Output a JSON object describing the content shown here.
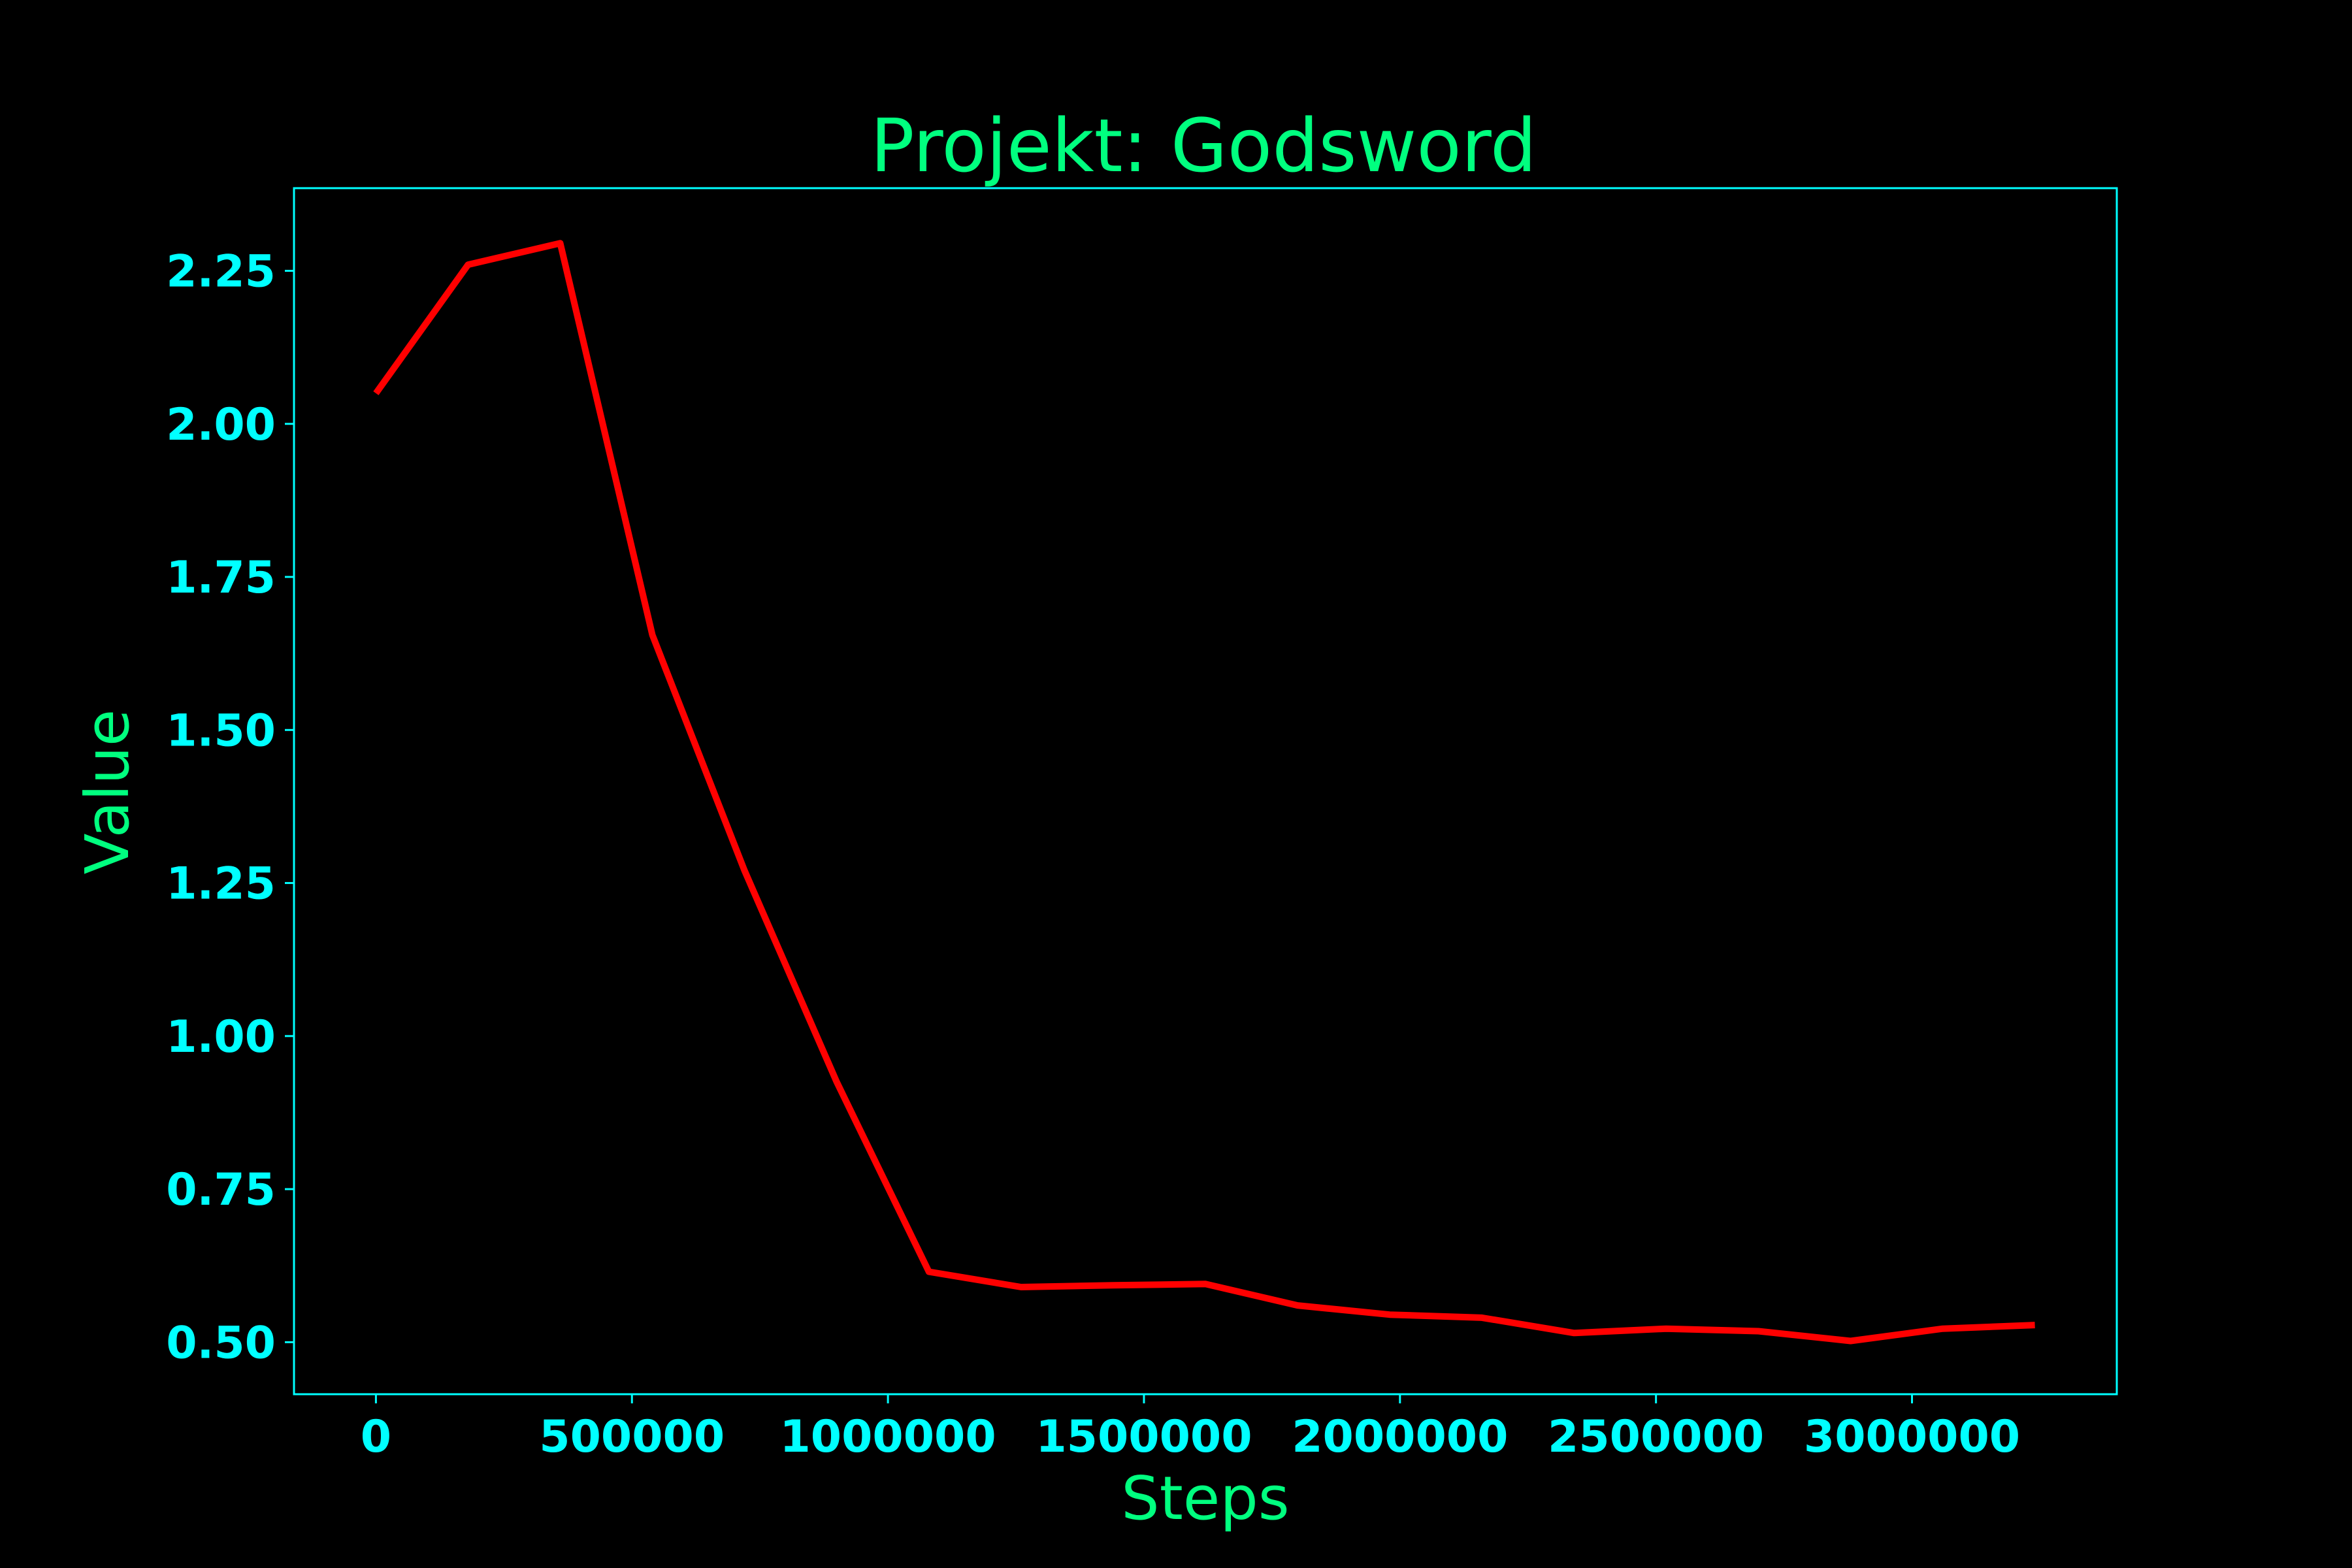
{
  "chart_data": {
    "type": "line",
    "title": "Projekt: Godsword",
    "xlabel": "Steps",
    "ylabel": "Value",
    "xlim": [
      -160000,
      3400000
    ],
    "ylim": [
      0.415,
      2.385
    ],
    "xticks": [
      0,
      500000,
      1000000,
      1500000,
      2000000,
      2500000,
      3000000
    ],
    "xtick_labels": [
      "0",
      "500000",
      "1000000",
      "1500000",
      "2000000",
      "2500000",
      "3000000"
    ],
    "yticks": [
      0.5,
      0.75,
      1.0,
      1.25,
      1.5,
      1.75,
      2.0,
      2.25
    ],
    "ytick_labels": [
      "0.50",
      "0.75",
      "1.00",
      "1.25",
      "1.50",
      "1.75",
      "2.00",
      "2.25"
    ],
    "grid": false,
    "series": [
      {
        "color": "#ff0000",
        "x": [
          0,
          180000,
          360000,
          540000,
          720000,
          900000,
          1080000,
          1260000,
          1440000,
          1620000,
          1800000,
          1980000,
          2160000,
          2340000,
          2520000,
          2700000,
          2880000,
          3060000,
          3240000
        ],
        "y": [
          2.05,
          2.26,
          2.295,
          1.655,
          1.27,
          0.925,
          0.615,
          0.59,
          0.593,
          0.595,
          0.56,
          0.545,
          0.54,
          0.515,
          0.522,
          0.518,
          0.502,
          0.522,
          0.528
        ]
      }
    ]
  },
  "colors": {
    "background": "#000000",
    "title": "#00ff7f",
    "axis_label": "#00ff7f",
    "ticks": "#00ffff",
    "spines": "#00ffff",
    "line": "#ff0000"
  }
}
